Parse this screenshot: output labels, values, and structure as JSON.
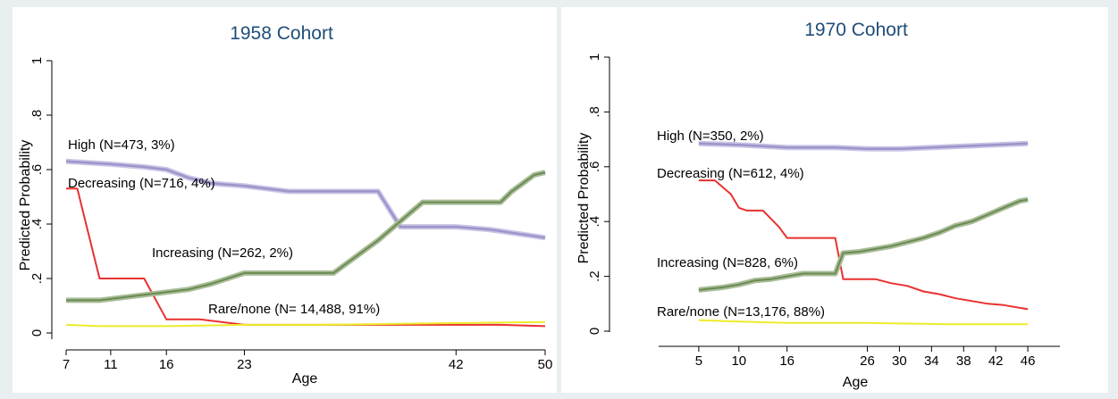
{
  "chart_data": [
    {
      "type": "line",
      "title": "1958 Cohort",
      "xlabel": "Age",
      "ylabel": "Predicted Probability",
      "xlim": [
        7,
        50
      ],
      "ylim": [
        0,
        1
      ],
      "xticks": [
        7,
        11,
        16,
        23,
        42,
        50
      ],
      "yticks": [
        "0",
        ".2",
        ".4",
        ".6",
        ".8",
        "1"
      ],
      "grid": false,
      "series": [
        {
          "name": "High (N=473, 3%)",
          "color": "#9b95c9",
          "points": [
            [
              7,
              0.63
            ],
            [
              11,
              0.62
            ],
            [
              14,
              0.61
            ],
            [
              16,
              0.6
            ],
            [
              18,
              0.57
            ],
            [
              20,
              0.55
            ],
            [
              23,
              0.54
            ],
            [
              27,
              0.52
            ],
            [
              31,
              0.52
            ],
            [
              35,
              0.52
            ],
            [
              37,
              0.39
            ],
            [
              42,
              0.39
            ],
            [
              45,
              0.38
            ],
            [
              50,
              0.35
            ]
          ]
        },
        {
          "name": "Decreasing (N=716, 4%)",
          "color": "#e8312f",
          "points": [
            [
              7,
              0.53
            ],
            [
              8,
              0.53
            ],
            [
              10,
              0.2
            ],
            [
              14,
              0.2
            ],
            [
              16,
              0.05
            ],
            [
              19,
              0.05
            ],
            [
              23,
              0.03
            ],
            [
              30,
              0.03
            ],
            [
              40,
              0.03
            ],
            [
              46,
              0.03
            ],
            [
              50,
              0.025
            ]
          ]
        },
        {
          "name": "Increasing (N=262, 2%)",
          "color": "#6b8a52",
          "points": [
            [
              7,
              0.12
            ],
            [
              10,
              0.12
            ],
            [
              12,
              0.13
            ],
            [
              14,
              0.14
            ],
            [
              16,
              0.15
            ],
            [
              18,
              0.16
            ],
            [
              20,
              0.18
            ],
            [
              23,
              0.22
            ],
            [
              27,
              0.22
            ],
            [
              31,
              0.22
            ],
            [
              35,
              0.34
            ],
            [
              39,
              0.48
            ],
            [
              43,
              0.48
            ],
            [
              46,
              0.48
            ],
            [
              47,
              0.52
            ],
            [
              48,
              0.55
            ],
            [
              49,
              0.58
            ],
            [
              50,
              0.59
            ]
          ]
        },
        {
          "name": "Rare/none (N= 14,488, 91%)",
          "color": "#ecec2a",
          "points": [
            [
              7,
              0.03
            ],
            [
              10,
              0.025
            ],
            [
              16,
              0.025
            ],
            [
              23,
              0.03
            ],
            [
              30,
              0.03
            ],
            [
              40,
              0.035
            ],
            [
              50,
              0.04
            ]
          ]
        }
      ],
      "annotations": [
        "High (N=473, 3%)",
        "Decreasing (N=716, 4%)",
        "Increasing (N=262, 2%)",
        "Rare/none (N= 14,488, 91%)"
      ]
    },
    {
      "type": "line",
      "title": "1970 Cohort",
      "xlabel": "Age",
      "ylabel": "Predicted Probability",
      "xlim": [
        0,
        50
      ],
      "ylim": [
        0,
        1
      ],
      "xticks": [
        5,
        10,
        16,
        26,
        30,
        34,
        38,
        42,
        46
      ],
      "yticks": [
        "0",
        ".2",
        ".4",
        ".6",
        ".8",
        "1"
      ],
      "grid": false,
      "series": [
        {
          "name": "High (N=350, 2%)",
          "color": "#9b95c9",
          "points": [
            [
              5,
              0.685
            ],
            [
              10,
              0.68
            ],
            [
              16,
              0.67
            ],
            [
              22,
              0.67
            ],
            [
              26,
              0.665
            ],
            [
              30,
              0.665
            ],
            [
              34,
              0.67
            ],
            [
              38,
              0.675
            ],
            [
              42,
              0.68
            ],
            [
              46,
              0.685
            ]
          ]
        },
        {
          "name": "Decreasing (N=612, 4%)",
          "color": "#e8312f",
          "points": [
            [
              5,
              0.55
            ],
            [
              7,
              0.55
            ],
            [
              9,
              0.5
            ],
            [
              10,
              0.45
            ],
            [
              11,
              0.44
            ],
            [
              13,
              0.44
            ],
            [
              15,
              0.38
            ],
            [
              16,
              0.34
            ],
            [
              18,
              0.34
            ],
            [
              22,
              0.34
            ],
            [
              23,
              0.19
            ],
            [
              25,
              0.19
            ],
            [
              27,
              0.19
            ],
            [
              29,
              0.175
            ],
            [
              31,
              0.165
            ],
            [
              33,
              0.145
            ],
            [
              35,
              0.135
            ],
            [
              37,
              0.12
            ],
            [
              39,
              0.11
            ],
            [
              41,
              0.1
            ],
            [
              43,
              0.095
            ],
            [
              46,
              0.08
            ]
          ]
        },
        {
          "name": "Increasing (N=828, 6%)",
          "color": "#6b8a52",
          "points": [
            [
              5,
              0.15
            ],
            [
              8,
              0.16
            ],
            [
              10,
              0.17
            ],
            [
              12,
              0.185
            ],
            [
              14,
              0.19
            ],
            [
              16,
              0.2
            ],
            [
              18,
              0.21
            ],
            [
              20,
              0.21
            ],
            [
              22,
              0.21
            ],
            [
              23,
              0.285
            ],
            [
              25,
              0.29
            ],
            [
              27,
              0.3
            ],
            [
              29,
              0.31
            ],
            [
              31,
              0.325
            ],
            [
              33,
              0.34
            ],
            [
              35,
              0.36
            ],
            [
              37,
              0.385
            ],
            [
              39,
              0.4
            ],
            [
              41,
              0.425
            ],
            [
              43,
              0.45
            ],
            [
              45,
              0.475
            ],
            [
              46,
              0.48
            ]
          ]
        },
        {
          "name": "Rare/none (N=13,176, 88%)",
          "color": "#ecec2a",
          "points": [
            [
              5,
              0.04
            ],
            [
              10,
              0.035
            ],
            [
              16,
              0.03
            ],
            [
              26,
              0.03
            ],
            [
              36,
              0.025
            ],
            [
              46,
              0.025
            ]
          ]
        }
      ],
      "annotations": [
        "High (N=350, 2%)",
        "Decreasing (N=612, 4%)",
        "Increasing (N=828, 6%)",
        "Rare/none (N=13,176, 88%)"
      ]
    }
  ]
}
